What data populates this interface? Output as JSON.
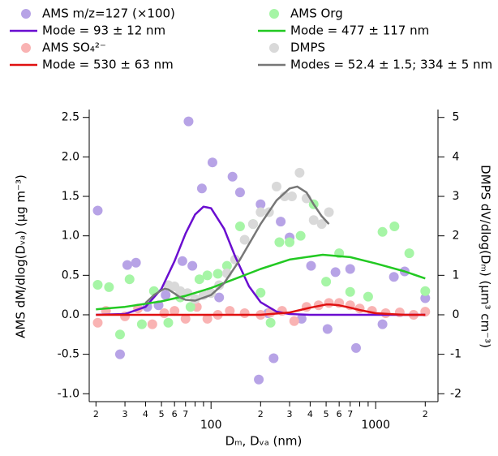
{
  "chart_data": {
    "type": "scatter",
    "xlabel": "Dₘ, Dᵥₐ (nm)",
    "ylabel": "AMS dM/dlog(Dᵥₐ) (µg m⁻³)",
    "y2label": "DMPS dV/dlog(Dₘ) (µm³ cm⁻³)",
    "xscale": "log",
    "xlim": [
      18.2,
      2390
    ],
    "ylim": [
      -1.1,
      2.6
    ],
    "y2lim": [
      -2.2,
      5.2
    ],
    "xticks": [
      {
        "value": 20,
        "label": "2"
      },
      {
        "value": 30,
        "label": "3"
      },
      {
        "value": 40,
        "label": "4"
      },
      {
        "value": 50,
        "label": "5"
      },
      {
        "value": 60,
        "label": "6"
      },
      {
        "value": 70,
        "label": "7"
      },
      100,
      {
        "value": 200,
        "label": "2"
      },
      {
        "value": 300,
        "label": "3"
      },
      {
        "value": 400,
        "label": "4"
      },
      {
        "value": 500,
        "label": "5"
      },
      {
        "value": 600,
        "label": "6"
      },
      {
        "value": 700,
        "label": "7"
      },
      1000,
      {
        "value": 2000,
        "label": "2"
      }
    ],
    "xminorticks": [
      80,
      90,
      800,
      900
    ],
    "yticks": [
      {
        "value": -1,
        "label": "-1.0"
      },
      -0.5,
      {
        "value": 0,
        "label": "0.0"
      },
      0.5,
      {
        "value": 1,
        "label": "1.0"
      },
      1.5,
      {
        "value": 2,
        "label": "2.0"
      },
      2.5
    ],
    "y2ticks": [
      -2,
      -1,
      0,
      1,
      2,
      3,
      4,
      5
    ],
    "series": [
      {
        "name": "AMS m/z=127 (×100)",
        "type": "scatter",
        "color": "#b7a3e6",
        "x": [
          20.5,
          28,
          31,
          35,
          41,
          48,
          53,
          67,
          73,
          77,
          88,
          102,
          112,
          135,
          150,
          195,
          200,
          222,
          240,
          265,
          300,
          355,
          405,
          510,
          570,
          700,
          760,
          1100,
          1290,
          1500,
          2000
        ],
        "values": [
          1.32,
          -0.5,
          0.63,
          0.66,
          0.1,
          0.12,
          0.25,
          0.68,
          2.45,
          0.62,
          1.6,
          1.93,
          0.22,
          1.75,
          1.55,
          -0.82,
          1.4,
          0.02,
          -0.55,
          1.18,
          0.98,
          -0.05,
          0.62,
          -0.18,
          0.54,
          0.58,
          -0.42,
          -0.12,
          0.48,
          0.55,
          0.21
        ]
      },
      {
        "name": "Mode = 93 ± 12 nm",
        "type": "line",
        "color": "#6a0dd0",
        "x": [
          20,
          30,
          40,
          50,
          60,
          70,
          80,
          90,
          100,
          120,
          140,
          170,
          200,
          250,
          300,
          400,
          2000
        ],
        "values": [
          0,
          0.01,
          0.1,
          0.33,
          0.68,
          1.03,
          1.27,
          1.37,
          1.35,
          1.09,
          0.74,
          0.36,
          0.16,
          0.04,
          0.01,
          0,
          0
        ]
      },
      {
        "name": "AMS SO₄²⁻",
        "type": "scatter",
        "color": "#f9b3b3",
        "x": [
          20.5,
          23,
          30,
          36,
          44,
          52,
          60,
          70,
          82,
          95,
          110,
          130,
          160,
          200,
          230,
          270,
          320,
          380,
          450,
          520,
          600,
          700,
          800,
          950,
          1150,
          1400,
          1700,
          2000
        ],
        "values": [
          -0.1,
          0.05,
          -0.02,
          0.08,
          -0.12,
          0.02,
          0.05,
          -0.05,
          0.1,
          -0.05,
          0,
          0.05,
          0.02,
          0,
          0.03,
          0.05,
          -0.08,
          0.1,
          0.12,
          0.15,
          0.15,
          0.12,
          0.08,
          0.05,
          0.02,
          0.03,
          0,
          0.04
        ]
      },
      {
        "name": "Mode = 530 ± 63 nm",
        "type": "line",
        "color": "#e01010",
        "x": [
          20,
          100,
          200,
          300,
          400,
          500,
          530,
          600,
          700,
          800,
          1000,
          1200,
          1500,
          2000
        ],
        "values": [
          0,
          0,
          0,
          0.03,
          0.09,
          0.13,
          0.13,
          0.12,
          0.09,
          0.06,
          0.02,
          0.01,
          0,
          0
        ]
      },
      {
        "name": "AMS Org",
        "type": "scatter",
        "color": "#a6f5a6",
        "x": [
          20.5,
          24,
          28,
          32,
          38,
          45,
          55,
          65,
          75,
          85,
          95,
          110,
          125,
          150,
          180,
          200,
          230,
          260,
          300,
          350,
          420,
          500,
          600,
          700,
          900,
          1100,
          1300,
          1600,
          2000
        ],
        "values": [
          0.38,
          0.35,
          -0.25,
          0.45,
          -0.12,
          0.3,
          -0.1,
          0.22,
          0.1,
          0.45,
          0.5,
          0.52,
          0.62,
          1.12,
          1.15,
          0.28,
          -0.1,
          0.92,
          0.92,
          1.0,
          1.4,
          0.42,
          0.78,
          0.29,
          0.23,
          1.05,
          1.12,
          0.78,
          0.3
        ]
      },
      {
        "name": "Mode = 477 ± 117 nm",
        "type": "line",
        "color": "#22c922",
        "x": [
          20,
          30,
          50,
          70,
          100,
          150,
          200,
          300,
          477,
          700,
          1000,
          1500,
          2000
        ],
        "values": [
          0.07,
          0.1,
          0.17,
          0.24,
          0.34,
          0.48,
          0.58,
          0.7,
          0.76,
          0.73,
          0.65,
          0.55,
          0.46
        ]
      },
      {
        "name": "DMPS",
        "type": "scatter",
        "color": "#d9d9d9",
        "axis": "y2",
        "x": [
          55,
          60,
          65,
          72,
          80,
          90,
          100,
          112,
          125,
          140,
          160,
          180,
          200,
          225,
          250,
          280,
          310,
          345,
          380,
          420,
          470,
          520
        ],
        "values": [
          0.75,
          0.72,
          0.6,
          0.55,
          0.4,
          0.5,
          0.55,
          0.75,
          1.05,
          1.4,
          1.9,
          2.3,
          2.6,
          2.6,
          3.25,
          3.0,
          3.0,
          3.6,
          2.95,
          2.4,
          2.3,
          2.6
        ]
      },
      {
        "name": "Modes = 52.4 ± 1.5; 334 ± 5  nm",
        "type": "line",
        "color": "#777777",
        "axis": "y2",
        "x": [
          40,
          45,
          50,
          52.4,
          55,
          60,
          65,
          70,
          80,
          100,
          120,
          150,
          200,
          250,
          300,
          334,
          380,
          420,
          470,
          520
        ],
        "values": [
          0.3,
          0.5,
          0.62,
          0.66,
          0.64,
          0.54,
          0.44,
          0.38,
          0.36,
          0.5,
          0.8,
          1.4,
          2.3,
          2.9,
          3.2,
          3.25,
          3.1,
          2.8,
          2.5,
          2.3
        ]
      }
    ]
  }
}
